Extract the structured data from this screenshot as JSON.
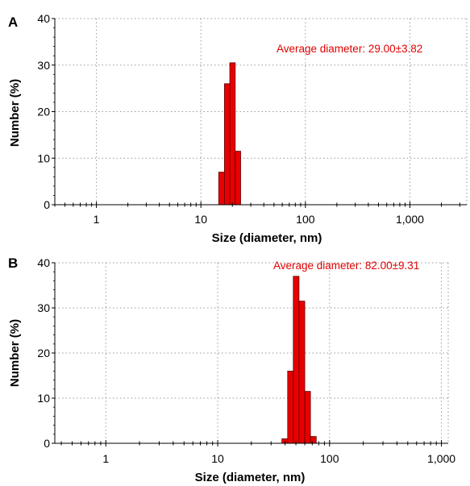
{
  "colors": {
    "bar": "#e80000",
    "bar_edge": "#5a0000",
    "annotation": "#e00000",
    "grid": "#9a9a9a",
    "axis": "#000000"
  },
  "chart_data": [
    {
      "type": "bar",
      "panel_label": "A",
      "xlabel": "Size (diameter, nm)",
      "ylabel": "Number (%)",
      "xscale": "log",
      "xlim": [
        0.4,
        3500
      ],
      "ylim": [
        0,
        40
      ],
      "yticks": [
        0,
        10,
        20,
        30,
        40
      ],
      "xticks": [
        {
          "value": 1,
          "label": "1"
        },
        {
          "value": 10,
          "label": "10"
        },
        {
          "value": 100,
          "label": "100"
        },
        {
          "value": 1000,
          "label": "1,000"
        }
      ],
      "grid": true,
      "annotation": "Average diameter: 29.00±3.82",
      "bars": [
        {
          "x0": 14.8,
          "x1": 16.8,
          "value": 7
        },
        {
          "x0": 16.8,
          "x1": 18.9,
          "value": 26
        },
        {
          "x0": 18.9,
          "x1": 21.3,
          "value": 30.5
        },
        {
          "x0": 21.3,
          "x1": 24.0,
          "value": 11.5
        }
      ]
    },
    {
      "type": "bar",
      "panel_label": "B",
      "xlabel": "Size (diameter, nm)",
      "ylabel": "Number (%)",
      "xscale": "log",
      "xlim": [
        0.35,
        1150
      ],
      "ylim": [
        0,
        40
      ],
      "yticks": [
        0,
        10,
        20,
        30,
        40
      ],
      "xticks": [
        {
          "value": 1,
          "label": "1"
        },
        {
          "value": 10,
          "label": "10"
        },
        {
          "value": 100,
          "label": "100"
        },
        {
          "value": 1000,
          "label": "1,000"
        }
      ],
      "grid": true,
      "annotation": "Average diameter: 82.00±9.31",
      "bars": [
        {
          "x0": 37.5,
          "x1": 42.2,
          "value": 1
        },
        {
          "x0": 42.2,
          "x1": 47.4,
          "value": 16
        },
        {
          "x0": 47.4,
          "x1": 53.3,
          "value": 37
        },
        {
          "x0": 53.3,
          "x1": 60.0,
          "value": 31.5
        },
        {
          "x0": 60.0,
          "x1": 67.5,
          "value": 11.5
        },
        {
          "x0": 67.5,
          "x1": 76.0,
          "value": 1.5
        }
      ]
    }
  ]
}
